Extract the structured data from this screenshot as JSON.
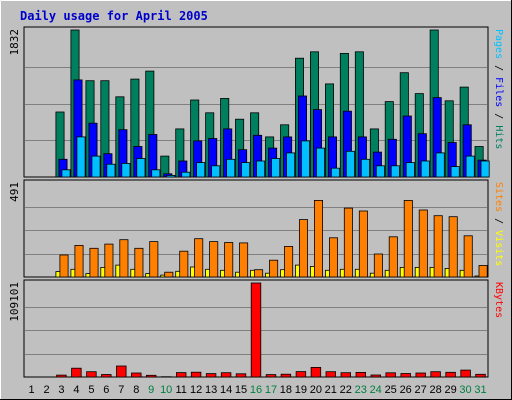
{
  "chart_data": {
    "type": "bar",
    "title": "Daily usage for April 2005",
    "x": [
      "1",
      "2",
      "3",
      "4",
      "5",
      "6",
      "7",
      "8",
      "9",
      "10",
      "11",
      "12",
      "13",
      "14",
      "15",
      "16",
      "17",
      "18",
      "19",
      "20",
      "21",
      "22",
      "23",
      "24",
      "25",
      "26",
      "27",
      "28",
      "29",
      "30",
      "31"
    ],
    "weekend_days": [
      "9",
      "10",
      "16",
      "17",
      "23",
      "24",
      "30",
      "31"
    ],
    "colors": {
      "background": "#c0c0c0",
      "hits": "#007f5f",
      "files": "#0000ff",
      "pages": "#00c0ff",
      "visits": "#ffff00",
      "sites": "#ff8000",
      "kbytes": "#ff0000",
      "title": "#0000cc",
      "weekday_label": "#000000",
      "weekend_label": "#008040"
    },
    "panels": [
      {
        "id": "hits-files-pages",
        "ymax": 1832,
        "ymax_label": "1832",
        "side_label_parts": [
          {
            "text": "Pages",
            "color": "#00c0ff"
          },
          {
            "text": " / ",
            "color": "#000000"
          },
          {
            "text": "Files",
            "color": "#0000ff"
          },
          {
            "text": " / ",
            "color": "#000000"
          },
          {
            "text": "Hits",
            "color": "#007f5f"
          }
        ],
        "series": [
          {
            "name": "Hits",
            "values": [
              0,
              0,
              810,
              1832,
              1200,
              1200,
              1000,
              1220,
              1320,
              260,
              600,
              960,
              800,
              980,
              720,
              800,
              500,
              650,
              1480,
              1560,
              1160,
              1540,
              1560,
              600,
              940,
              1300,
              1040,
              1832,
              950,
              1120,
              380
            ]
          },
          {
            "name": "Files",
            "values": [
              0,
              0,
              220,
              1210,
              670,
              290,
              590,
              380,
              530,
              40,
              200,
              450,
              480,
              600,
              340,
              520,
              360,
              500,
              1010,
              840,
              500,
              820,
              500,
              310,
              470,
              760,
              540,
              990,
              430,
              650,
              210
            ]
          },
          {
            "name": "Pages",
            "values": [
              0,
              0,
              90,
              500,
              260,
              160,
              170,
              230,
              90,
              20,
              60,
              180,
              140,
              220,
              180,
              200,
              230,
              300,
              450,
              360,
              110,
              320,
              220,
              140,
              140,
              180,
              200,
              300,
              130,
              260,
              200
            ]
          }
        ]
      },
      {
        "id": "visits-sites",
        "ymax": 491,
        "ymax_label": "491",
        "side_label_parts": [
          {
            "text": "Sites",
            "color": "#ff8000"
          },
          {
            "text": " / ",
            "color": "#000000"
          },
          {
            "text": "Visits",
            "color": "#ffff00"
          }
        ],
        "series": [
          {
            "name": "Visits",
            "values": [
              0,
              0,
              28,
              40,
              18,
              50,
              62,
              40,
              18,
              10,
              30,
              52,
              40,
              35,
              25,
              35,
              20,
              38,
              62,
              55,
              35,
              40,
              40,
              20,
              35,
              50,
              50,
              50,
              45,
              35,
              5
            ]
          },
          {
            "name": "Sites",
            "values": [
              0,
              0,
              115,
              165,
              150,
              172,
              195,
              150,
              185,
              25,
              135,
              200,
              185,
              180,
              178,
              38,
              88,
              160,
              300,
              400,
              205,
              360,
              345,
              120,
              210,
              400,
              350,
              320,
              315,
              215,
              60
            ]
          }
        ]
      },
      {
        "id": "kbytes",
        "ymax": 109101,
        "ymax_label": "109101",
        "side_label_parts": [
          {
            "text": "KBytes",
            "color": "#ff0000"
          }
        ],
        "series": [
          {
            "name": "KBytes",
            "values": [
              0,
              0,
              2200,
              10200,
              6100,
              2900,
              12800,
              4600,
              2000,
              400,
              5100,
              5600,
              3900,
              5000,
              3700,
              109101,
              2800,
              3200,
              6300,
              11200,
              6100,
              5000,
              5300,
              2300,
              4900,
              4100,
              4600,
              6100,
              5500,
              8000,
              3100
            ]
          }
        ]
      }
    ]
  }
}
